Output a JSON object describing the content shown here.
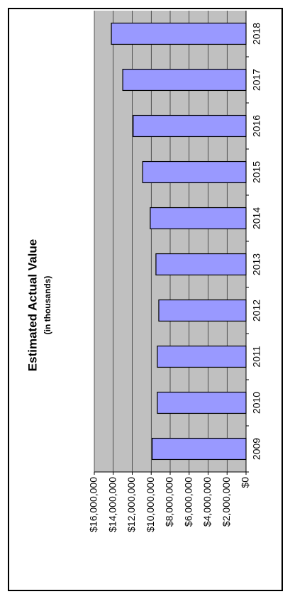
{
  "chart_data": {
    "type": "bar",
    "title": "Estimated Actual Value",
    "subtitle": "(in thousands)",
    "categories": [
      "2009",
      "2010",
      "2011",
      "2012",
      "2013",
      "2014",
      "2015",
      "2016",
      "2017",
      "2018"
    ],
    "values": [
      9900000,
      9350000,
      9350000,
      9200000,
      9500000,
      10100000,
      10900000,
      11900000,
      13000000,
      14200000
    ],
    "color": "#9999ff",
    "ylim": [
      0,
      16000000
    ],
    "yticks": [
      {
        "value": 0,
        "label": "$0"
      },
      {
        "value": 2000000,
        "label": "$2,000,000"
      },
      {
        "value": 4000000,
        "label": "$4,000,000"
      },
      {
        "value": 6000000,
        "label": "$6,000,000"
      },
      {
        "value": 8000000,
        "label": "$8,000,000"
      },
      {
        "value": 10000000,
        "label": "$10,000,000"
      },
      {
        "value": 12000000,
        "label": "$12,000,000"
      },
      {
        "value": 14000000,
        "label": "$14,000,000"
      },
      {
        "value": 16000000,
        "label": "$16,000,000"
      }
    ],
    "grid": true
  }
}
